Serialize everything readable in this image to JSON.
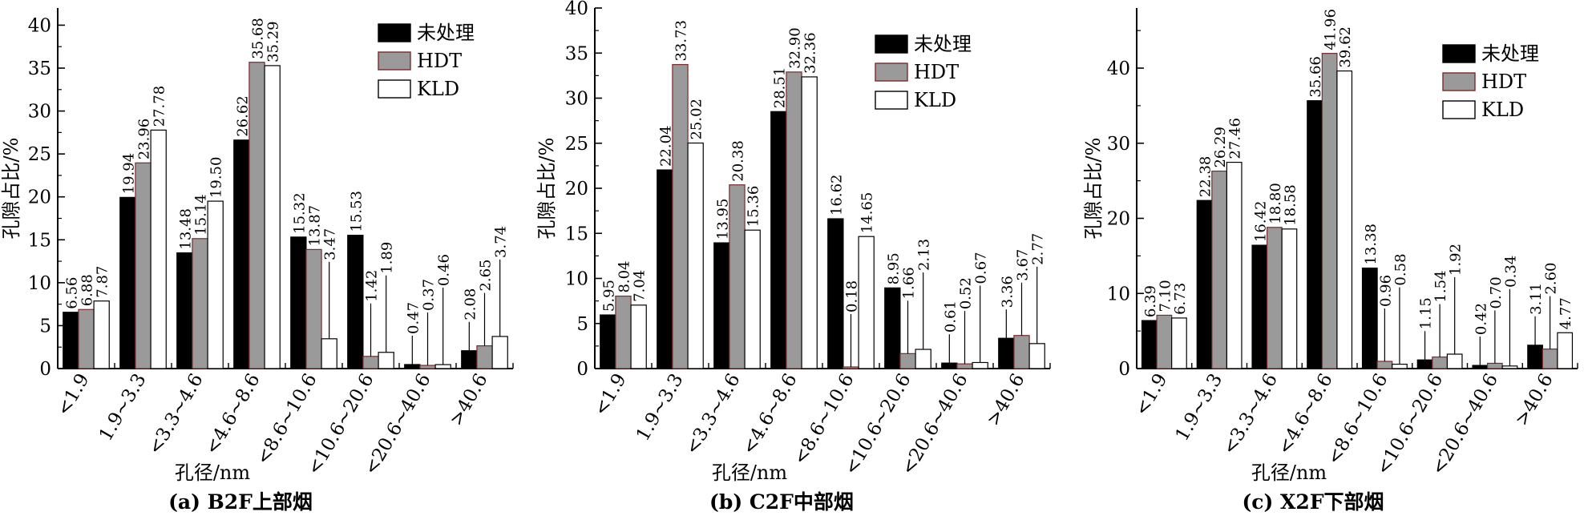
{
  "legend_labels": [
    "未处理",
    "HDT",
    "KLD"
  ],
  "chart_data": [
    {
      "type": "bar",
      "title": "(a) B2F上部烟",
      "xlabel": "孔径/nm",
      "ylabel": "孔隙占比/%",
      "ylim": [
        0,
        42
      ],
      "yticks": [
        0,
        5,
        10,
        15,
        20,
        25,
        30,
        35,
        40
      ],
      "legend_position": "top-right",
      "categories": [
        "<1.9",
        "1.9~3.3",
        "<3.3~4.6",
        "<4.6~8.6",
        "<8.6~10.6",
        "<10.6~20.6",
        "<20.6~40.6",
        ">40.6"
      ],
      "series": [
        {
          "name": "未处理",
          "color": "#000000",
          "values": [
            6.56,
            19.94,
            13.48,
            26.62,
            15.32,
            15.53,
            0.47,
            2.08
          ],
          "labels": [
            "6.56",
            "19.94",
            "13.48",
            "26.62",
            "15.32",
            "15.53",
            "0.47",
            "2.08"
          ]
        },
        {
          "name": "HDT",
          "color": "#9a9a9a",
          "values": [
            6.88,
            23.96,
            15.14,
            35.68,
            13.87,
            1.42,
            0.37,
            2.65
          ],
          "labels": [
            "6.88",
            "23.96",
            "15.14",
            "35.68",
            "13.87",
            "1.42",
            "0.37",
            "2.65"
          ]
        },
        {
          "name": "KLD",
          "color": "#ffffff",
          "values": [
            7.87,
            27.78,
            19.5,
            35.29,
            3.47,
            1.89,
            0.46,
            3.74
          ],
          "labels": [
            "7.87",
            "27.78",
            "19.50",
            "35.29",
            "3.47",
            "1.89",
            "0.46",
            "3.74"
          ]
        }
      ]
    },
    {
      "type": "bar",
      "title": "(b) C2F中部烟",
      "xlabel": "孔径/nm",
      "ylabel": "孔隙占比/%",
      "ylim": [
        0,
        40
      ],
      "yticks": [
        0,
        5,
        10,
        15,
        20,
        25,
        30,
        35,
        40
      ],
      "legend_position": "top-right",
      "categories": [
        "<1.9",
        "1.9~3.3",
        "<3.3~4.6",
        "<4.6~8.6",
        "<8.6~10.6",
        "<10.6~20.6",
        "<20.6~40.6",
        ">40.6"
      ],
      "series": [
        {
          "name": "未处理",
          "color": "#000000",
          "values": [
            5.95,
            22.04,
            13.95,
            28.51,
            16.62,
            8.95,
            0.61,
            3.36
          ],
          "labels": [
            "5.95",
            "22.04",
            "13.95",
            "28.51",
            "16.62",
            "8.95",
            "0.61",
            "3.36"
          ]
        },
        {
          "name": "HDT",
          "color": "#9a9a9a",
          "values": [
            8.04,
            33.73,
            20.38,
            32.9,
            0.18,
            1.66,
            0.52,
            3.67
          ],
          "labels": [
            "8.04",
            "33.73",
            "20.38",
            "32.90",
            "0.18",
            "1.66",
            "0.52",
            "3.67"
          ]
        },
        {
          "name": "KLD",
          "color": "#ffffff",
          "values": [
            7.04,
            25.02,
            15.36,
            32.36,
            14.65,
            2.13,
            0.67,
            2.77
          ],
          "labels": [
            "7.04",
            "25.02",
            "15.36",
            "32.36",
            "14.65",
            "2.13",
            "0.67",
            "2.77"
          ]
        }
      ]
    },
    {
      "type": "bar",
      "title": "(c) X2F下部烟",
      "xlabel": "孔径/nm",
      "ylabel": "孔隙占比/%",
      "ylim": [
        0,
        48
      ],
      "yticks": [
        0,
        10,
        20,
        30,
        40
      ],
      "legend_position": "top-right",
      "categories": [
        "<1.9",
        "1.9~3.3",
        "<3.3~4.6",
        "<4.6~8.6",
        "<8.6~10.6",
        "<10.6~20.6",
        "<20.6~40.6",
        ">40.6"
      ],
      "series": [
        {
          "name": "未处理",
          "color": "#000000",
          "values": [
            6.39,
            22.38,
            16.42,
            35.66,
            13.38,
            1.15,
            0.42,
            3.11
          ],
          "labels": [
            "6.39",
            "22.38",
            "16.42",
            "35.66",
            "13.38",
            "1.15",
            "0.42",
            "3.11"
          ]
        },
        {
          "name": "HDT",
          "color": "#9a9a9a",
          "values": [
            7.1,
            26.29,
            18.8,
            41.96,
            0.96,
            1.54,
            0.7,
            2.6
          ],
          "labels": [
            "7.10",
            "26.29",
            "18.80",
            "41.96",
            "0.96",
            "1.54",
            "0.70",
            "2.60"
          ]
        },
        {
          "name": "KLD",
          "color": "#ffffff",
          "values": [
            6.73,
            27.46,
            18.58,
            39.62,
            0.58,
            1.92,
            0.34,
            4.77
          ],
          "labels": [
            "6.73",
            "27.46",
            "18.58",
            "39.62",
            "0.58",
            "1.92",
            "0.34",
            "4.77"
          ]
        }
      ]
    }
  ]
}
